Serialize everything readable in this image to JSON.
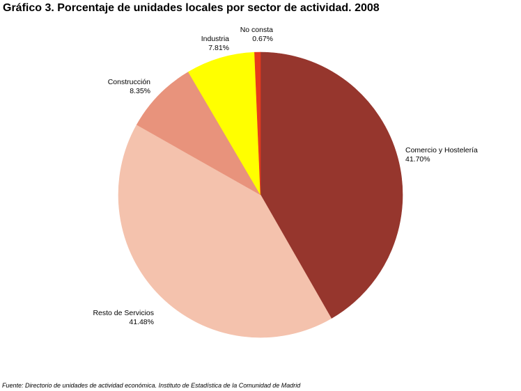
{
  "chart_data": {
    "type": "pie",
    "title": "Gráfico 3. Porcentaje de unidades locales por sector de actividad. 2008",
    "source": "Fuente: Directorio de unidades de actividad económica. Instituto de Estadística de la Comunidad de Madrid",
    "slices": [
      {
        "label": "Comercio y Hostelería",
        "value_label": "41.70%",
        "value": 41.7,
        "color": "#96362d"
      },
      {
        "label": "Resto de Servicios",
        "value_label": "41.48%",
        "value": 41.48,
        "color": "#f4c2ad"
      },
      {
        "label": "Construcción",
        "value_label": "8.35%",
        "value": 8.35,
        "color": "#e8937c"
      },
      {
        "label": "Industria",
        "value_label": "7.81%",
        "value": 7.81,
        "color": "#ffff00"
      },
      {
        "label": "No consta",
        "value_label": "0.67%",
        "value": 0.67,
        "color": "#e63a1c"
      }
    ]
  }
}
